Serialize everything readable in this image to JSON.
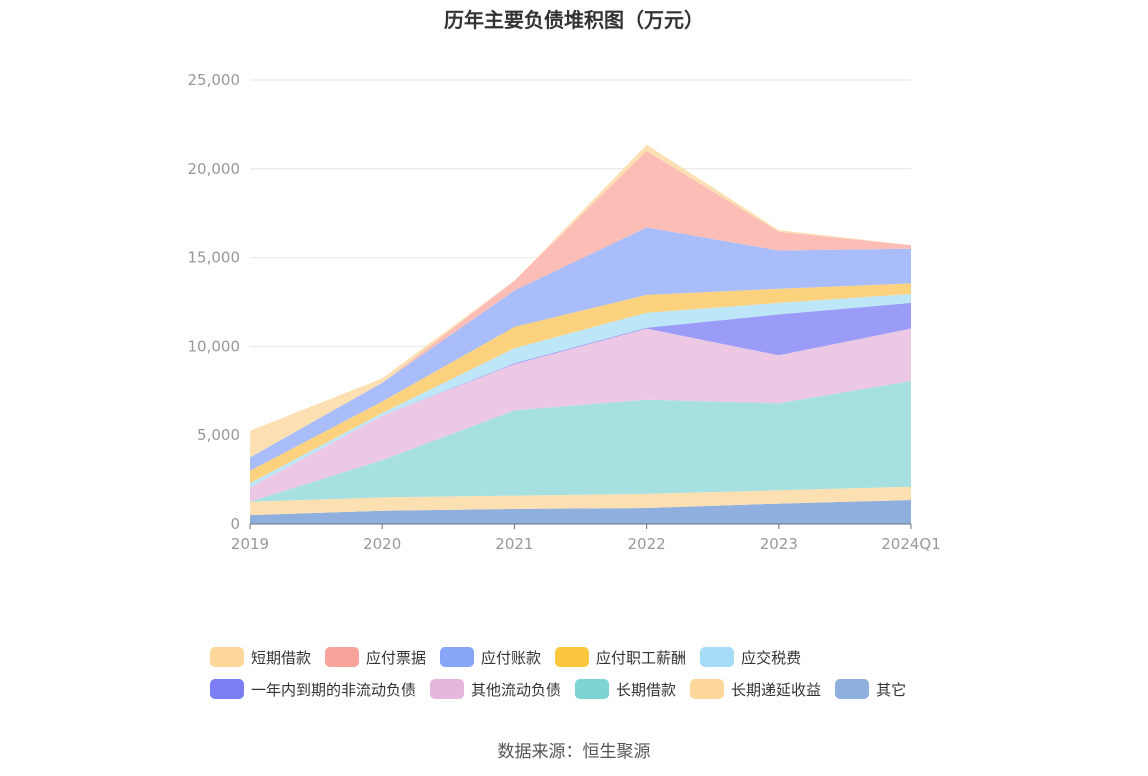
{
  "chart_data": {
    "type": "area",
    "stacked": true,
    "title": "历年主要负债堆积图（万元）",
    "categories": [
      "2019",
      "2020",
      "2021",
      "2022",
      "2023",
      "2024Q1"
    ],
    "ylim": [
      0,
      25000
    ],
    "yticks": [
      "0",
      "5,000",
      "10,000",
      "15,000",
      "20,000",
      "25,000"
    ],
    "grid": true,
    "legend_position": "bottom",
    "series": [
      {
        "name": "其它",
        "color": "#8fb0de",
        "values": [
          500,
          750,
          850,
          900,
          1150,
          1350
        ]
      },
      {
        "name": "长期递延收益",
        "color": "#fde0b2",
        "values": [
          750,
          750,
          750,
          800,
          750,
          750
        ]
      },
      {
        "name": "长期借款",
        "color": "#a6e0e0",
        "values": [
          0,
          2100,
          4800,
          5300,
          4900,
          5950
        ]
      },
      {
        "name": "其他流动负债",
        "color": "#ecc8e4",
        "values": [
          800,
          2500,
          2600,
          4000,
          2700,
          2950
        ]
      },
      {
        "name": "一年内到期的非流动负债",
        "color": "#9a9cf7",
        "values": [
          0,
          0,
          50,
          50,
          2300,
          1450
        ]
      },
      {
        "name": "应交税费",
        "color": "#bde6f8",
        "values": [
          250,
          150,
          850,
          850,
          650,
          500
        ]
      },
      {
        "name": "应付职工薪酬",
        "color": "#fdd27e",
        "values": [
          700,
          650,
          1200,
          1000,
          800,
          600
        ]
      },
      {
        "name": "应付账款",
        "color": "#a8bdfa",
        "values": [
          750,
          1050,
          2050,
          3800,
          2150,
          1950
        ]
      },
      {
        "name": "应付票据",
        "color": "#fbbdb5",
        "values": [
          0,
          0,
          550,
          4300,
          1050,
          200
        ]
      },
      {
        "name": "短期借款",
        "color": "#fde0b2",
        "values": [
          1500,
          250,
          0,
          350,
          100,
          0
        ]
      }
    ]
  },
  "legend": {
    "rows": [
      [
        {
          "label": "短期借款",
          "color": "#fdd89a"
        },
        {
          "label": "应付票据",
          "color": "#f8a49a"
        },
        {
          "label": "应付账款",
          "color": "#88a6f8"
        },
        {
          "label": "应付职工薪酬",
          "color": "#fcc63f"
        },
        {
          "label": "应交税费",
          "color": "#a6dcf8"
        }
      ],
      [
        {
          "label": "一年内到期的非流动负债",
          "color": "#7a7ef2"
        },
        {
          "label": "其他流动负债",
          "color": "#e6b6dc"
        },
        {
          "label": "长期借款",
          "color": "#7ed4d2"
        },
        {
          "label": "长期递延收益",
          "color": "#fdd89a"
        },
        {
          "label": "其它",
          "color": "#8fb0de"
        }
      ]
    ]
  },
  "source": "数据来源：恒生聚源"
}
